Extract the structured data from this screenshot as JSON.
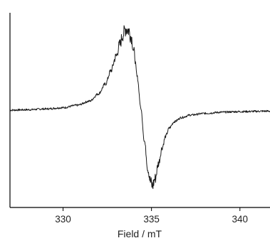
{
  "chart_data": {
    "type": "line",
    "title": "",
    "xlabel": "Field / mT",
    "ylabel": "",
    "xlim": [
      327,
      341.7
    ],
    "ylim": [
      -1.0,
      1.0
    ],
    "xticks": [
      330,
      335,
      340
    ],
    "grid": false,
    "legend": "none",
    "y_ticks_visible": false,
    "series": [
      {
        "x": [
          327.0,
          328.0,
          329.0,
          330.0,
          330.8,
          331.5,
          332.0,
          332.4,
          332.7,
          333.0,
          333.2,
          333.4,
          333.55,
          333.7,
          333.85,
          334.0,
          334.2,
          334.4,
          334.6,
          334.8,
          334.95,
          335.05,
          335.2,
          335.4,
          335.6,
          335.8,
          336.0,
          336.3,
          336.7,
          337.2,
          338.0,
          339.0,
          340.0,
          341.7
        ],
        "y": [
          0.0,
          0.005,
          0.015,
          0.03,
          0.06,
          0.11,
          0.2,
          0.32,
          0.48,
          0.66,
          0.8,
          0.93,
          1.0,
          0.98,
          0.9,
          0.72,
          0.4,
          0.02,
          -0.38,
          -0.72,
          -0.88,
          -0.93,
          -0.84,
          -0.65,
          -0.46,
          -0.32,
          -0.22,
          -0.14,
          -0.09,
          -0.06,
          -0.04,
          -0.025,
          -0.018,
          -0.012
        ]
      }
    ]
  }
}
